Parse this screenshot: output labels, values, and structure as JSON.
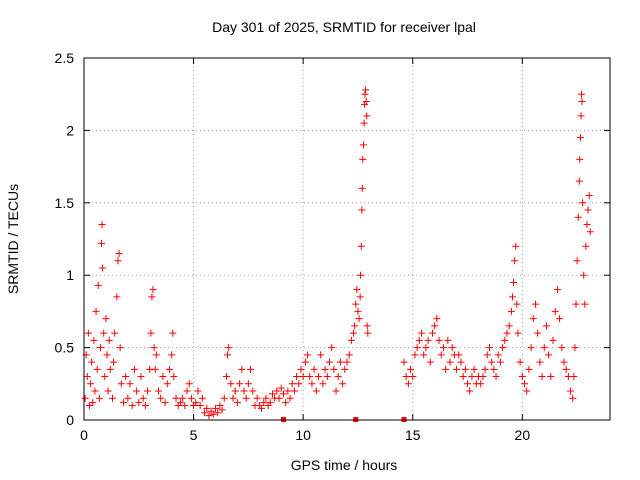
{
  "chart_data": {
    "type": "scatter",
    "title": "Day 301 of 2025, SRMTID for receiver lpal",
    "xlabel": "GPS time / hours",
    "ylabel": "SRMTID / TECUs",
    "xlim": [
      0,
      24
    ],
    "ylim": [
      0,
      2.5
    ],
    "xticks": [
      0,
      5,
      10,
      15,
      20
    ],
    "yticks": [
      0,
      0.5,
      1,
      1.5,
      2,
      2.5
    ],
    "x_tick_labels": [
      "0",
      "5",
      "10",
      "15",
      "20"
    ],
    "y_tick_labels": [
      "0",
      "0.5",
      "1",
      "1.5",
      "2",
      "2.5"
    ],
    "grid": true,
    "marker": "plus",
    "color": "#ff0000",
    "series": [
      {
        "name": "SRMTID",
        "points": [
          [
            0.05,
            0.15
          ],
          [
            0.1,
            0.45
          ],
          [
            0.15,
            0.3
          ],
          [
            0.2,
            0.6
          ],
          [
            0.25,
            0.1
          ],
          [
            0.3,
            0.25
          ],
          [
            0.35,
            0.4
          ],
          [
            0.4,
            0.12
          ],
          [
            0.45,
            0.55
          ],
          [
            0.5,
            0.2
          ],
          [
            0.55,
            0.75
          ],
          [
            0.6,
            0.35
          ],
          [
            0.65,
            0.93
          ],
          [
            0.7,
            0.15
          ],
          [
            0.75,
            0.5
          ],
          [
            0.8,
            1.22
          ],
          [
            0.82,
            1.35
          ],
          [
            0.85,
            1.05
          ],
          [
            0.9,
            0.6
          ],
          [
            0.95,
            0.3
          ],
          [
            1.0,
            0.7
          ],
          [
            1.05,
            0.45
          ],
          [
            1.1,
            0.2
          ],
          [
            1.15,
            0.55
          ],
          [
            1.2,
            0.35
          ],
          [
            1.3,
            0.15
          ],
          [
            1.35,
            0.4
          ],
          [
            1.4,
            0.6
          ],
          [
            1.5,
            0.85
          ],
          [
            1.55,
            1.1
          ],
          [
            1.6,
            1.15
          ],
          [
            1.65,
            0.5
          ],
          [
            1.7,
            0.25
          ],
          [
            1.8,
            0.12
          ],
          [
            1.9,
            0.3
          ],
          [
            2.0,
            0.15
          ],
          [
            2.1,
            0.25
          ],
          [
            2.2,
            0.1
          ],
          [
            2.3,
            0.35
          ],
          [
            2.4,
            0.2
          ],
          [
            2.5,
            0.12
          ],
          [
            2.6,
            0.3
          ],
          [
            2.7,
            0.15
          ],
          [
            2.8,
            0.1
          ],
          [
            2.9,
            0.2
          ],
          [
            3.0,
            0.35
          ],
          [
            3.05,
            0.6
          ],
          [
            3.1,
            0.85
          ],
          [
            3.15,
            0.9
          ],
          [
            3.2,
            0.5
          ],
          [
            3.25,
            0.35
          ],
          [
            3.3,
            0.45
          ],
          [
            3.4,
            0.2
          ],
          [
            3.5,
            0.15
          ],
          [
            3.6,
            0.3
          ],
          [
            3.7,
            0.12
          ],
          [
            3.8,
            0.25
          ],
          [
            3.9,
            0.35
          ],
          [
            4.0,
            0.45
          ],
          [
            4.05,
            0.6
          ],
          [
            4.1,
            0.3
          ],
          [
            4.2,
            0.15
          ],
          [
            4.3,
            0.1
          ],
          [
            4.4,
            0.12
          ],
          [
            4.5,
            0.15
          ],
          [
            4.6,
            0.1
          ],
          [
            4.7,
            0.2
          ],
          [
            4.8,
            0.25
          ],
          [
            4.9,
            0.15
          ],
          [
            5.0,
            0.1
          ],
          [
            5.1,
            0.12
          ],
          [
            5.2,
            0.2
          ],
          [
            5.3,
            0.1
          ],
          [
            5.4,
            0.15
          ],
          [
            5.5,
            0.05
          ],
          [
            5.6,
            0.08
          ],
          [
            5.7,
            0.03
          ],
          [
            5.8,
            0.06
          ],
          [
            5.9,
            0.04
          ],
          [
            6.0,
            0.08
          ],
          [
            6.1,
            0.05
          ],
          [
            6.2,
            0.1
          ],
          [
            6.3,
            0.07
          ],
          [
            6.4,
            0.15
          ],
          [
            6.5,
            0.3
          ],
          [
            6.55,
            0.45
          ],
          [
            6.6,
            0.5
          ],
          [
            6.7,
            0.25
          ],
          [
            6.8,
            0.15
          ],
          [
            6.9,
            0.2
          ],
          [
            7.0,
            0.12
          ],
          [
            7.1,
            0.25
          ],
          [
            7.2,
            0.35
          ],
          [
            7.3,
            0.2
          ],
          [
            7.4,
            0.15
          ],
          [
            7.5,
            0.25
          ],
          [
            7.6,
            0.35
          ],
          [
            7.7,
            0.2
          ],
          [
            7.8,
            0.1
          ],
          [
            7.9,
            0.15
          ],
          [
            8.0,
            0.1
          ],
          [
            8.1,
            0.08
          ],
          [
            8.2,
            0.12
          ],
          [
            8.3,
            0.15
          ],
          [
            8.4,
            0.1
          ],
          [
            8.5,
            0.12
          ],
          [
            8.6,
            0.18
          ],
          [
            8.7,
            0.15
          ],
          [
            8.8,
            0.2
          ],
          [
            8.9,
            0.15
          ],
          [
            9.0,
            0.22
          ],
          [
            9.1,
            0.18
          ],
          [
            9.2,
            0.12
          ],
          [
            9.3,
            0.2
          ],
          [
            9.4,
            0.15
          ],
          [
            9.5,
            0.25
          ],
          [
            9.6,
            0.2
          ],
          [
            9.7,
            0.3
          ],
          [
            9.8,
            0.25
          ],
          [
            9.9,
            0.35
          ],
          [
            10.0,
            0.3
          ],
          [
            10.1,
            0.4
          ],
          [
            10.2,
            0.45
          ],
          [
            10.3,
            0.3
          ],
          [
            10.4,
            0.25
          ],
          [
            10.5,
            0.35
          ],
          [
            10.6,
            0.2
          ],
          [
            10.7,
            0.3
          ],
          [
            10.8,
            0.45
          ],
          [
            10.9,
            0.25
          ],
          [
            11.0,
            0.35
          ],
          [
            11.1,
            0.3
          ],
          [
            11.2,
            0.4
          ],
          [
            11.3,
            0.5
          ],
          [
            11.4,
            0.35
          ],
          [
            11.5,
            0.2
          ],
          [
            11.6,
            0.3
          ],
          [
            11.7,
            0.4
          ],
          [
            11.8,
            0.25
          ],
          [
            11.9,
            0.35
          ],
          [
            12.0,
            0.4
          ],
          [
            12.1,
            0.45
          ],
          [
            12.2,
            0.55
          ],
          [
            12.3,
            0.6
          ],
          [
            12.35,
            0.65
          ],
          [
            12.4,
            0.8
          ],
          [
            12.45,
            0.9
          ],
          [
            12.5,
            0.75
          ],
          [
            12.55,
            0.7
          ],
          [
            12.6,
            0.85
          ],
          [
            12.62,
            1.0
          ],
          [
            12.65,
            1.2
          ],
          [
            12.68,
            1.45
          ],
          [
            12.7,
            1.6
          ],
          [
            12.72,
            1.8
          ],
          [
            12.75,
            1.9
          ],
          [
            12.78,
            2.05
          ],
          [
            12.8,
            2.18
          ],
          [
            12.82,
            2.25
          ],
          [
            12.85,
            2.28
          ],
          [
            12.88,
            2.2
          ],
          [
            12.9,
            2.1
          ],
          [
            12.92,
            0.65
          ],
          [
            12.95,
            0.6
          ],
          [
            14.6,
            0.4
          ],
          [
            14.7,
            0.3
          ],
          [
            14.8,
            0.25
          ],
          [
            14.9,
            0.35
          ],
          [
            15.0,
            0.3
          ],
          [
            15.1,
            0.45
          ],
          [
            15.2,
            0.5
          ],
          [
            15.3,
            0.55
          ],
          [
            15.4,
            0.6
          ],
          [
            15.5,
            0.45
          ],
          [
            15.6,
            0.5
          ],
          [
            15.7,
            0.55
          ],
          [
            15.8,
            0.4
          ],
          [
            15.9,
            0.6
          ],
          [
            16.0,
            0.65
          ],
          [
            16.1,
            0.7
          ],
          [
            16.2,
            0.55
          ],
          [
            16.3,
            0.45
          ],
          [
            16.4,
            0.5
          ],
          [
            16.5,
            0.35
          ],
          [
            16.6,
            0.55
          ],
          [
            16.7,
            0.4
          ],
          [
            16.8,
            0.5
          ],
          [
            16.9,
            0.45
          ],
          [
            17.0,
            0.35
          ],
          [
            17.1,
            0.45
          ],
          [
            17.2,
            0.4
          ],
          [
            17.3,
            0.3
          ],
          [
            17.4,
            0.35
          ],
          [
            17.5,
            0.25
          ],
          [
            17.6,
            0.2
          ],
          [
            17.7,
            0.3
          ],
          [
            17.8,
            0.35
          ],
          [
            17.9,
            0.25
          ],
          [
            18.0,
            0.3
          ],
          [
            18.1,
            0.25
          ],
          [
            18.2,
            0.3
          ],
          [
            18.3,
            0.35
          ],
          [
            18.4,
            0.45
          ],
          [
            18.5,
            0.5
          ],
          [
            18.6,
            0.4
          ],
          [
            18.7,
            0.35
          ],
          [
            18.8,
            0.3
          ],
          [
            18.9,
            0.45
          ],
          [
            19.0,
            0.4
          ],
          [
            19.1,
            0.5
          ],
          [
            19.2,
            0.55
          ],
          [
            19.3,
            0.6
          ],
          [
            19.4,
            0.65
          ],
          [
            19.5,
            0.75
          ],
          [
            19.55,
            0.85
          ],
          [
            19.6,
            0.95
          ],
          [
            19.65,
            1.1
          ],
          [
            19.7,
            1.2
          ],
          [
            19.75,
            0.8
          ],
          [
            19.8,
            0.6
          ],
          [
            19.9,
            0.4
          ],
          [
            20.0,
            0.3
          ],
          [
            20.1,
            0.25
          ],
          [
            20.2,
            0.2
          ],
          [
            20.3,
            0.35
          ],
          [
            20.4,
            0.5
          ],
          [
            20.5,
            0.7
          ],
          [
            20.6,
            0.8
          ],
          [
            20.7,
            0.6
          ],
          [
            20.8,
            0.4
          ],
          [
            20.9,
            0.3
          ],
          [
            21.0,
            0.5
          ],
          [
            21.1,
            0.65
          ],
          [
            21.2,
            0.45
          ],
          [
            21.3,
            0.3
          ],
          [
            21.4,
            0.55
          ],
          [
            21.5,
            0.75
          ],
          [
            21.6,
            0.9
          ],
          [
            21.7,
            0.7
          ],
          [
            21.8,
            0.5
          ],
          [
            21.9,
            0.4
          ],
          [
            22.0,
            0.35
          ],
          [
            22.1,
            0.3
          ],
          [
            22.2,
            0.2
          ],
          [
            22.3,
            0.15
          ],
          [
            22.35,
            0.3
          ],
          [
            22.4,
            0.5
          ],
          [
            22.45,
            0.8
          ],
          [
            22.5,
            1.1
          ],
          [
            22.55,
            1.4
          ],
          [
            22.6,
            1.65
          ],
          [
            22.62,
            1.8
          ],
          [
            22.65,
            1.95
          ],
          [
            22.68,
            2.1
          ],
          [
            22.7,
            2.25
          ],
          [
            22.72,
            2.2
          ],
          [
            22.75,
            1.5
          ],
          [
            22.8,
            1.0
          ],
          [
            22.85,
            0.8
          ],
          [
            22.9,
            1.2
          ],
          [
            22.95,
            1.35
          ],
          [
            23.0,
            1.45
          ],
          [
            23.05,
            1.55
          ],
          [
            23.1,
            1.3
          ]
        ]
      }
    ],
    "gap_markers_x": [
      9.1,
      12.4,
      14.6
    ]
  }
}
